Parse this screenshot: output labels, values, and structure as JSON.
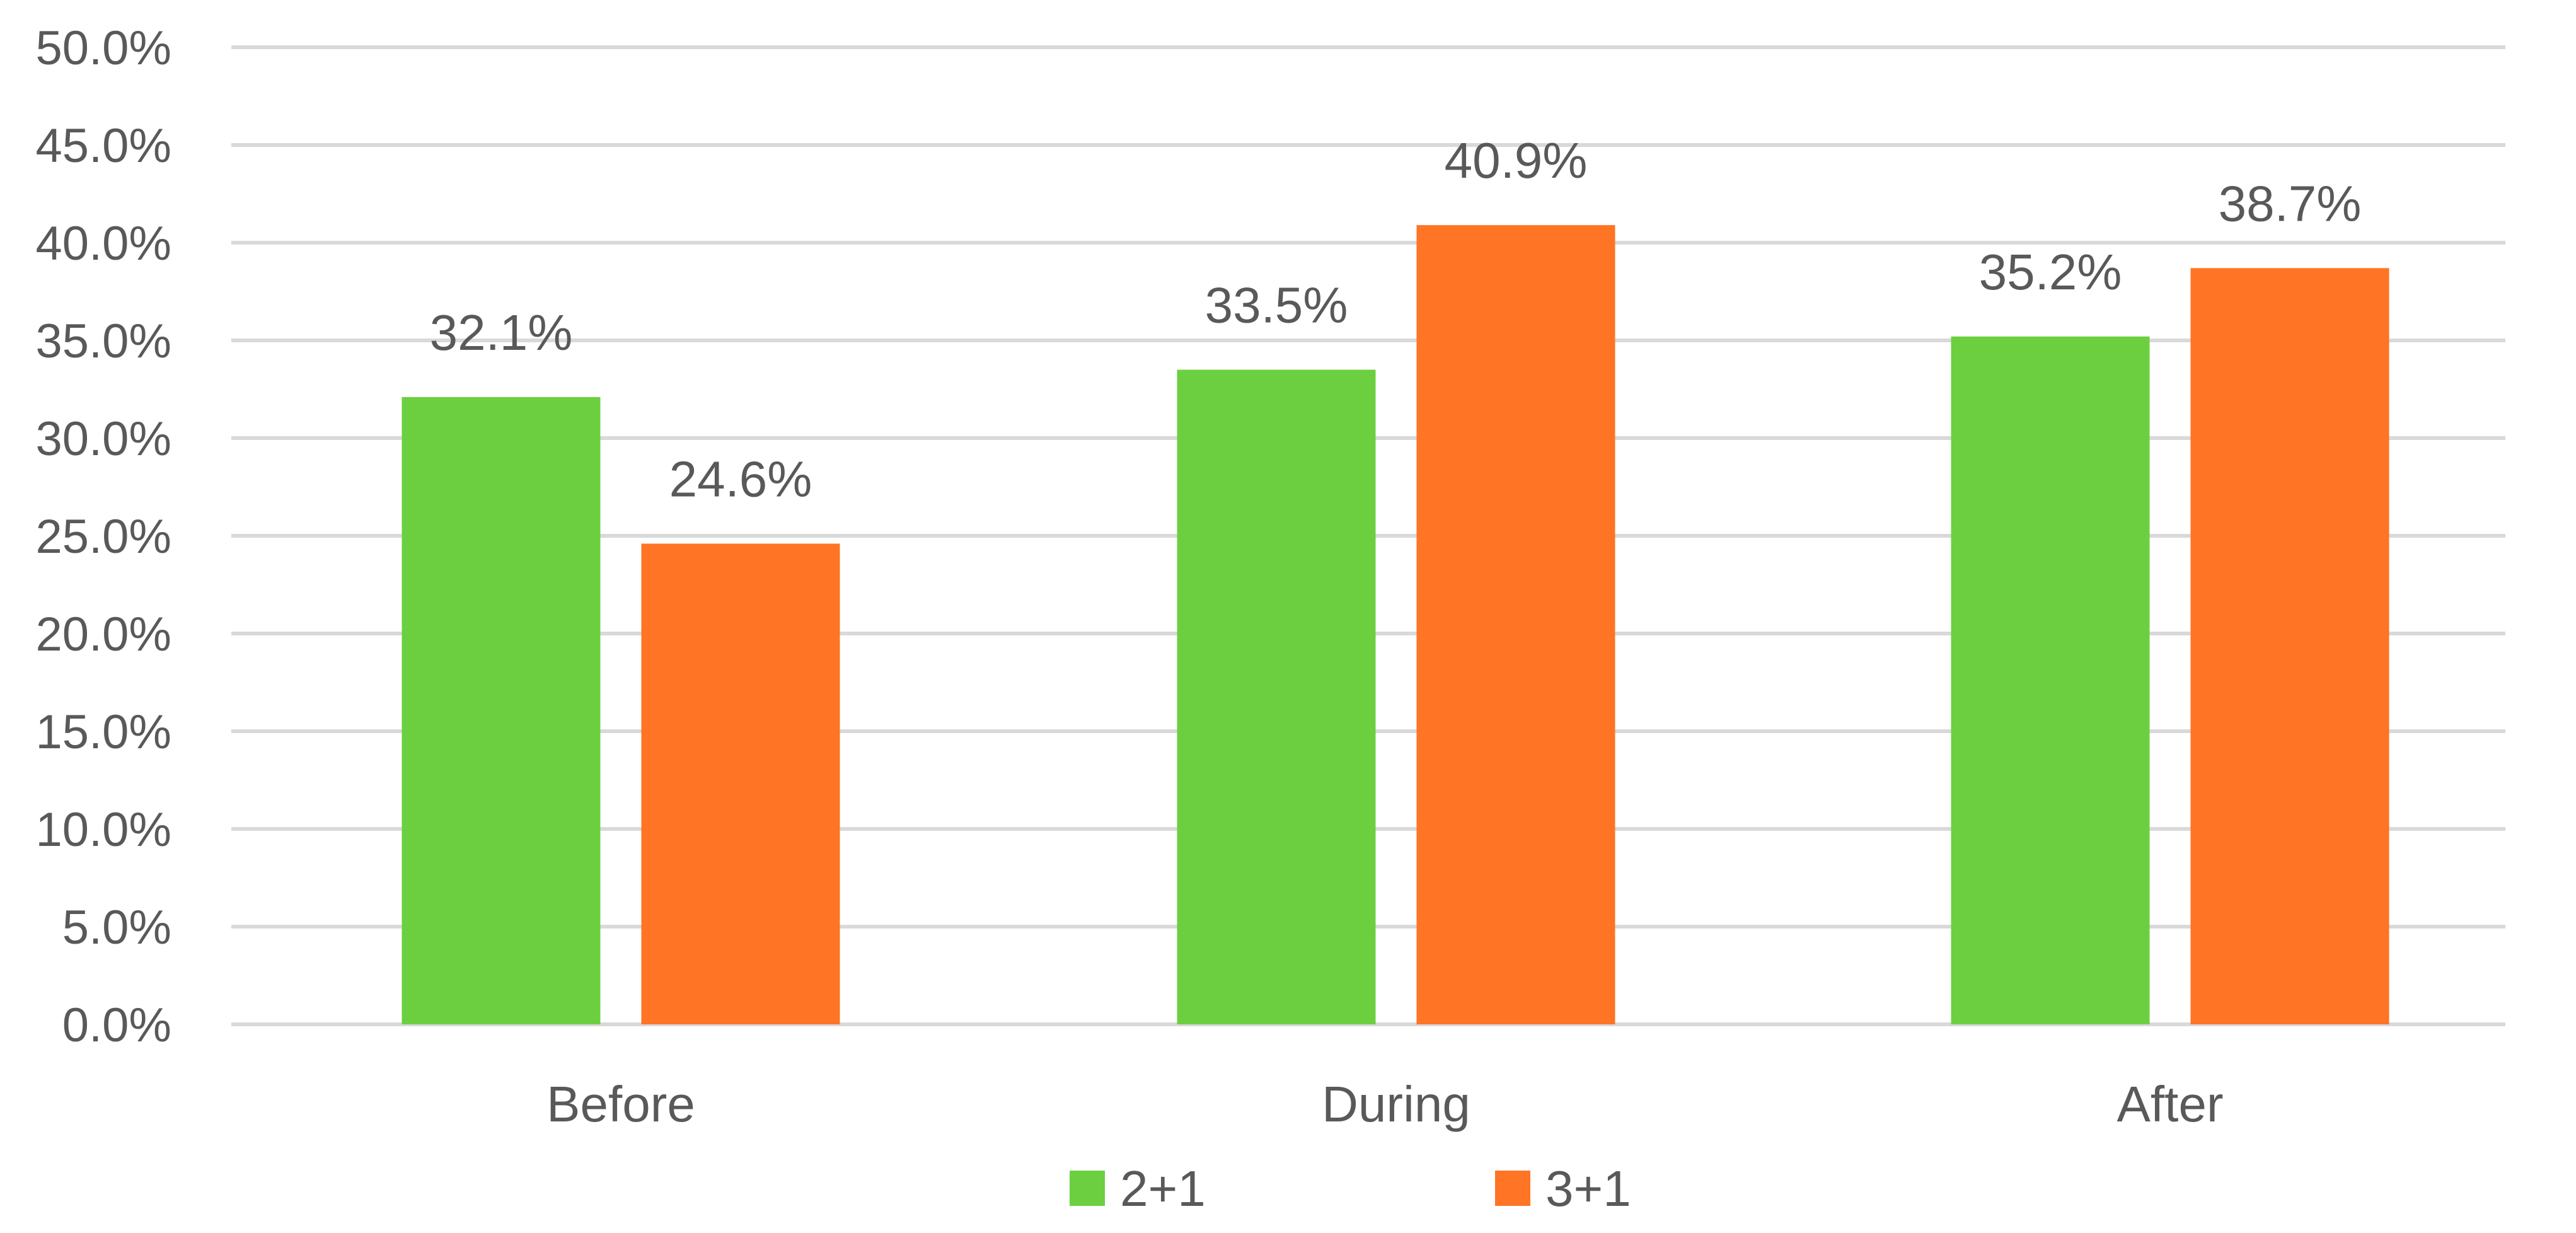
{
  "chart_data": {
    "type": "bar",
    "categories": [
      "Before",
      "During",
      "After"
    ],
    "series": [
      {
        "name": "2+1",
        "values": [
          32.1,
          33.5,
          35.2
        ],
        "color": "#6CCF3F"
      },
      {
        "name": "3+1",
        "values": [
          24.6,
          40.9,
          38.7
        ],
        "color": "#FF7425"
      }
    ],
    "data_labels": [
      [
        "32.1%",
        "33.5%",
        "35.2%"
      ],
      [
        "24.6%",
        "40.9%",
        "38.7%"
      ]
    ],
    "y_tick_labels": [
      "0.0%",
      "5.0%",
      "10.0%",
      "15.0%",
      "20.0%",
      "25.0%",
      "30.0%",
      "35.0%",
      "40.0%",
      "45.0%",
      "50.0%"
    ],
    "ylim": [
      0,
      50
    ],
    "y_step": 5,
    "title": "",
    "xlabel": "",
    "ylabel": "",
    "grid": true,
    "legend_position": "bottom",
    "gridline_color": "#D9D9D9",
    "text_color": "#595959"
  }
}
